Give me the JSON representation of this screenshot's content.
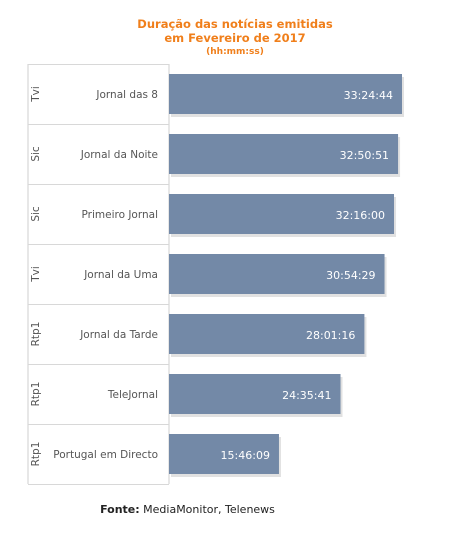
{
  "chart_data": {
    "type": "bar",
    "orientation": "horizontal",
    "title": [
      "Duração das notícias emitidas",
      "em Fevereiro de 2017"
    ],
    "subtitle": "(hh:mm:ss)",
    "channels": [
      "Tvi",
      "Sic",
      "Sic",
      "Tvi",
      "Rtp1",
      "Rtp1",
      "Rtp1"
    ],
    "categories": [
      "Jornal das 8",
      "Jornal da Noite",
      "Primeiro Jornal",
      "Jornal da Uma",
      "Jornal da Tarde",
      "TeleJornal",
      "Portugal em Directo"
    ],
    "value_labels": [
      "33:24:44",
      "32:50:51",
      "32:16:00",
      "30:54:29",
      "28:01:16",
      "24:35:41",
      "15:46:09"
    ],
    "values_hours": [
      33.412,
      32.848,
      32.267,
      30.908,
      28.021,
      24.595,
      15.769
    ],
    "bar_color": "#7389a7",
    "label_color": "#ffffff",
    "title_color": "#f07f1b"
  },
  "source": {
    "label": "Fonte:",
    "text": " MediaMonitor, Telenews"
  }
}
